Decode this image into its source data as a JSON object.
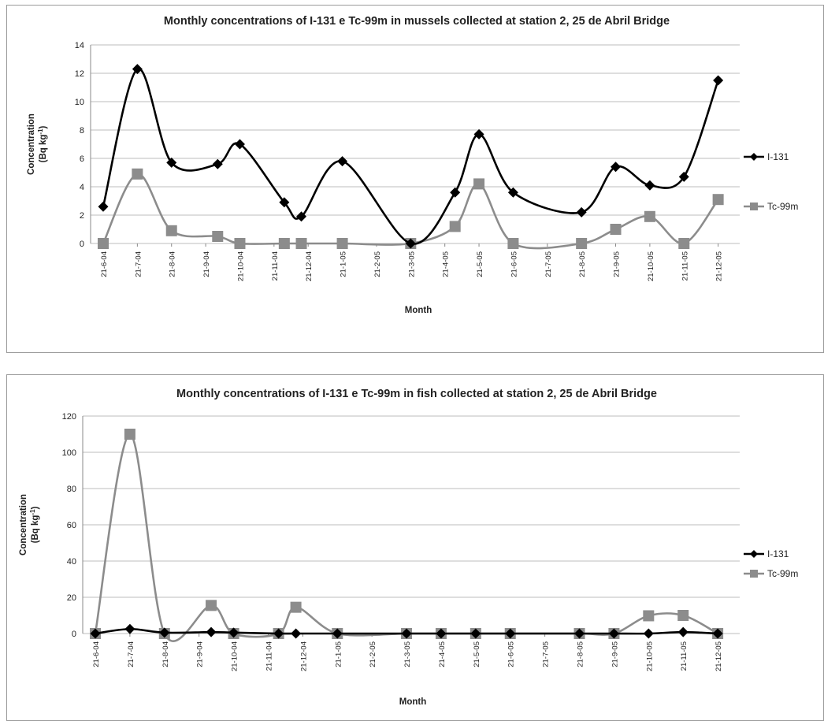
{
  "chart_data": [
    {
      "type": "line",
      "title": "Monthly concentrations of I-131 e Tc-99m in mussels collected at station 2, 25 de Abril Bridge",
      "xlabel": "Month",
      "ylabel_line1": "Concentration",
      "ylabel_line2_base": "(Bq kg",
      "ylabel_line2_sup": "-1",
      "ylabel_line2_end": ")",
      "ylim": [
        0,
        14
      ],
      "yticks": [
        0,
        2,
        4,
        6,
        8,
        10,
        12,
        14
      ],
      "x_categories": [
        "21-6-04",
        "21-7-04",
        "21-8-04",
        "21-9-04",
        "21-10-04",
        "21-11-04",
        "21-12-04",
        "21-1-05",
        "21-2-05",
        "21-3-05",
        "21-4-05",
        "21-5-05",
        "21-6-05",
        "21-7-05",
        "21-8-05",
        "21-9-05",
        "21-10-05",
        "21-11-05",
        "21-12-05"
      ],
      "grid": true,
      "legend_position": "right",
      "series": [
        {
          "name": "I-131",
          "color": "#000000",
          "marker": "diamond",
          "points": [
            [
              0,
              2.6
            ],
            [
              1,
              12.3
            ],
            [
              2,
              5.7
            ],
            [
              3.35,
              5.6
            ],
            [
              4,
              7.0
            ],
            [
              5.3,
              2.9
            ],
            [
              5.8,
              1.9
            ],
            [
              7,
              5.8
            ],
            [
              9,
              0
            ],
            [
              10.3,
              3.6
            ],
            [
              11,
              7.7
            ],
            [
              12,
              3.6
            ],
            [
              14,
              2.2
            ],
            [
              15,
              5.4
            ],
            [
              16,
              4.1
            ],
            [
              17,
              4.7
            ],
            [
              18,
              11.5
            ]
          ]
        },
        {
          "name": "Tc-99m",
          "color": "#8c8c8c",
          "marker": "square",
          "points": [
            [
              0,
              0
            ],
            [
              1,
              4.9
            ],
            [
              2,
              0.9
            ],
            [
              3.35,
              0.5
            ],
            [
              4,
              0
            ],
            [
              5.3,
              0
            ],
            [
              5.8,
              0
            ],
            [
              7,
              0
            ],
            [
              9,
              0
            ],
            [
              10.3,
              1.2
            ],
            [
              11,
              4.2
            ],
            [
              12,
              0
            ],
            [
              14,
              0
            ],
            [
              15,
              1.0
            ],
            [
              16,
              1.9
            ],
            [
              17,
              0
            ],
            [
              18,
              3.1
            ]
          ]
        }
      ]
    },
    {
      "type": "line",
      "title": "Monthly concentrations of I-131 e Tc-99m in fish collected at station 2, 25 de Abril Bridge",
      "xlabel": "Month",
      "ylabel_line1": "Concentration",
      "ylabel_line2_base": "(Bq kg",
      "ylabel_line2_sup": "-1",
      "ylabel_line2_end": ")",
      "ylim": [
        0,
        120
      ],
      "yticks": [
        0,
        20,
        40,
        60,
        80,
        100,
        120
      ],
      "x_categories": [
        "21-6-04",
        "21-7-04",
        "21-8-04",
        "21-9-04",
        "21-10-04",
        "21-11-04",
        "21-12-04",
        "21-1-05",
        "21-2-05",
        "21-3-05",
        "21-4-05",
        "21-5-05",
        "21-6-05",
        "21-7-05",
        "21-8-05",
        "21-9-05",
        "21-10-05",
        "21-11-05",
        "21-12-05"
      ],
      "grid": true,
      "legend_position": "right",
      "series": [
        {
          "name": "I-131",
          "color": "#000000",
          "marker": "diamond",
          "points": [
            [
              0,
              0
            ],
            [
              1,
              2.5
            ],
            [
              2,
              0.5
            ],
            [
              3.35,
              0.8
            ],
            [
              4,
              0.5
            ],
            [
              5.3,
              0
            ],
            [
              5.8,
              0
            ],
            [
              7,
              0
            ],
            [
              9,
              0
            ],
            [
              10,
              0
            ],
            [
              11,
              0
            ],
            [
              12,
              0
            ],
            [
              14,
              0
            ],
            [
              15,
              0
            ],
            [
              16,
              0
            ],
            [
              17,
              0.8
            ],
            [
              18,
              0
            ]
          ]
        },
        {
          "name": "Tc-99m",
          "color": "#8c8c8c",
          "marker": "square",
          "points": [
            [
              0,
              0
            ],
            [
              1,
              110
            ],
            [
              2,
              0
            ],
            [
              3.35,
              15.5
            ],
            [
              4,
              0
            ],
            [
              5.3,
              0
            ],
            [
              5.8,
              14.5
            ],
            [
              7,
              0
            ],
            [
              9,
              0
            ],
            [
              10,
              0
            ],
            [
              11,
              0
            ],
            [
              12,
              0
            ],
            [
              14,
              0
            ],
            [
              15,
              0
            ],
            [
              16,
              9.8
            ],
            [
              17,
              10
            ],
            [
              18,
              0
            ]
          ]
        }
      ]
    }
  ]
}
